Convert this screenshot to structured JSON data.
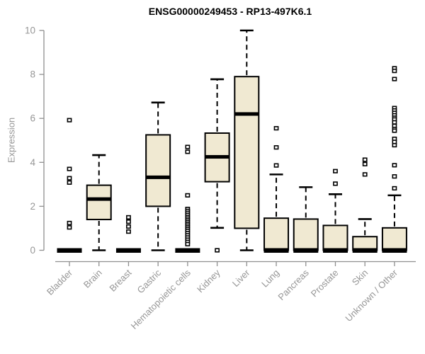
{
  "chart_data": {
    "type": "boxplot",
    "title": "ENSG00000249453 - RP13-497K6.1",
    "ylabel": "Expression",
    "xlabel": "",
    "ylim": [
      0,
      10
    ],
    "yticks": [
      0,
      2,
      4,
      6,
      8,
      10
    ],
    "grid": false,
    "legend": null,
    "colors": {
      "box_fill": "#F0E9D2",
      "box_border": "#000000",
      "median": "#000000",
      "whisker": "#000000",
      "axis_line": "#8F8F8F",
      "tick_text": "#969696",
      "title_text": "#000000",
      "background": "#FFFFFF"
    },
    "categories": [
      "Bladder",
      "Brain",
      "Breast",
      "Gastric",
      "Hematopoietic cells",
      "Kidney",
      "Liver",
      "Lung",
      "Pancreas",
      "Prostate",
      "Skin",
      "Unknown / Other"
    ],
    "series": [
      {
        "label": "Bladder",
        "low": 0,
        "q1": 0,
        "median": 0,
        "q3": 0,
        "high": 0,
        "outliers": [
          5.92,
          3.7,
          3.28,
          3.08,
          1.24,
          1.04
        ]
      },
      {
        "label": "Brain",
        "low": 0,
        "q1": 1.4,
        "median": 2.33,
        "q3": 2.96,
        "high": 4.33,
        "outliers": []
      },
      {
        "label": "Breast",
        "low": 0,
        "q1": 0,
        "median": 0,
        "q3": 0,
        "high": 0,
        "outliers": [
          1.5,
          1.3,
          1.08,
          0.85
        ]
      },
      {
        "label": "Gastric",
        "low": 0,
        "q1": 2.0,
        "median": 3.32,
        "q3": 5.25,
        "high": 6.72,
        "outliers": []
      },
      {
        "label": "Hematopoietic cells",
        "low": 0,
        "q1": 0,
        "median": 0,
        "q3": 0,
        "high": 0,
        "outliers": [
          4.7,
          4.48,
          2.5,
          1.88,
          1.79,
          1.7,
          1.61,
          1.52,
          1.44,
          1.36,
          1.28,
          1.2,
          1.12,
          1.04,
          0.96,
          0.88,
          0.78,
          0.68,
          0.58,
          0.48,
          0.38,
          0.28
        ]
      },
      {
        "label": "Kidney",
        "low": 1.02,
        "q1": 3.12,
        "median": 4.25,
        "q3": 5.33,
        "high": 7.78,
        "outliers": [
          0
        ]
      },
      {
        "label": "Liver",
        "low": 0,
        "q1": 1.0,
        "median": 6.2,
        "q3": 7.9,
        "high": 10.0,
        "outliers": []
      },
      {
        "label": "Lung",
        "low": 0,
        "q1": 0,
        "median": 0,
        "q3": 1.46,
        "high": 3.45,
        "outliers": [
          5.55,
          4.68,
          3.86
        ]
      },
      {
        "label": "Pancreas",
        "low": 0,
        "q1": 0,
        "median": 0,
        "q3": 1.42,
        "high": 2.87,
        "outliers": []
      },
      {
        "label": "Prostate",
        "low": 0,
        "q1": 0,
        "median": 0,
        "q3": 1.13,
        "high": 2.55,
        "outliers": [
          3.6,
          3.03
        ]
      },
      {
        "label": "Skin",
        "low": 0,
        "q1": 0,
        "median": 0,
        "q3": 0.62,
        "high": 1.42,
        "outliers": [
          4.12,
          3.92,
          3.45
        ]
      },
      {
        "label": "Unknown / Other",
        "low": 0,
        "q1": 0,
        "median": 0,
        "q3": 1.02,
        "high": 2.5,
        "outliers": [
          8.28,
          8.16,
          7.79,
          6.47,
          6.36,
          6.25,
          6.14,
          6.03,
          5.95,
          5.82,
          5.66,
          5.52,
          5.44,
          5.07,
          4.93,
          4.78,
          3.87,
          3.36,
          2.82
        ]
      }
    ]
  }
}
